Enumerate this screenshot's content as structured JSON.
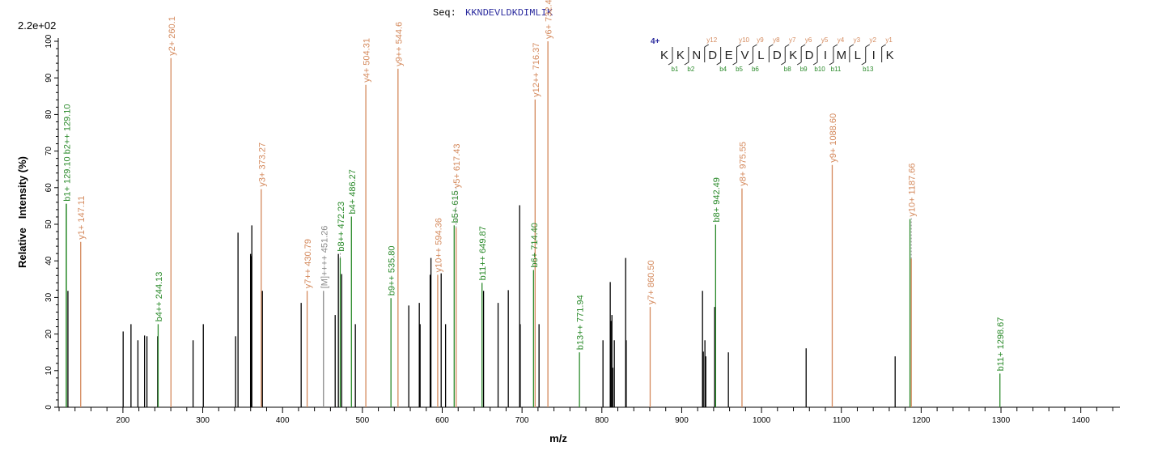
{
  "chart_data": {
    "type": "bar",
    "subtype": "mass-spectrum-sticks",
    "scale_label": "2.2e+02",
    "xlabel": "m/z",
    "ylabel": "Relative   Intensity (%)",
    "xlim": [
      119,
      1449
    ],
    "ylim": [
      0,
      100
    ],
    "x_ticks": [
      200,
      300,
      400,
      500,
      600,
      700,
      800,
      900,
      1000,
      1100,
      1200,
      1300,
      1400
    ],
    "y_ticks": [
      0,
      10,
      20,
      30,
      40,
      50,
      60,
      70,
      80,
      90,
      100
    ],
    "grid": false,
    "sequence": {
      "prefix": "Seq:",
      "peptide": "KKNDEVLDKDIMLIK",
      "charge": "4+",
      "residues": [
        "K",
        "K",
        "N",
        "D",
        "E",
        "V",
        "L",
        "D",
        "K",
        "D",
        "I",
        "M",
        "L",
        "I",
        "K"
      ],
      "y_ions": [
        12,
        10,
        9,
        8,
        7,
        6,
        5,
        4,
        3,
        2,
        1
      ],
      "b_ions": [
        1,
        2,
        4,
        5,
        6,
        8,
        9,
        10,
        11,
        13
      ]
    },
    "colors": {
      "b": "#2a8a2a",
      "y": "#d4895c",
      "other": "#8a8a8a",
      "unannotated": "#000000",
      "sequence": "#2b2b9e"
    },
    "peaks": [
      {
        "mz": 129.1,
        "intensity": 55.6,
        "ion": "b",
        "label": "b1+ 129.10"
      },
      {
        "mz": 129.1,
        "intensity": 55.6,
        "ion": "b",
        "label": "b2++ 129.10"
      },
      {
        "mz": 131.1,
        "intensity": 31.8,
        "ion": "unannotated"
      },
      {
        "mz": 147.11,
        "intensity": 45.2,
        "ion": "y",
        "label": "y1+ 147.11"
      },
      {
        "mz": 200.3,
        "intensity": 20.7,
        "ion": "unannotated"
      },
      {
        "mz": 210.1,
        "intensity": 22.7,
        "ion": "unannotated"
      },
      {
        "mz": 218.8,
        "intensity": 18.3,
        "ion": "unannotated"
      },
      {
        "mz": 227.1,
        "intensity": 19.6,
        "ion": "unannotated"
      },
      {
        "mz": 230.1,
        "intensity": 19.4,
        "ion": "unannotated"
      },
      {
        "mz": 243.5,
        "intensity": 19.4,
        "ion": "unannotated"
      },
      {
        "mz": 244.13,
        "intensity": 22.7,
        "ion": "b",
        "label": "b4++ 244.13"
      },
      {
        "mz": 260.18,
        "intensity": 95.4,
        "ion": "y",
        "label": "y2+ 260.1"
      },
      {
        "mz": 287.9,
        "intensity": 18.3,
        "ion": "unannotated"
      },
      {
        "mz": 300.7,
        "intensity": 22.7,
        "ion": "unannotated"
      },
      {
        "mz": 341.2,
        "intensity": 19.4,
        "ion": "unannotated"
      },
      {
        "mz": 344.2,
        "intensity": 47.7,
        "ion": "unannotated"
      },
      {
        "mz": 359.9,
        "intensity": 41.9,
        "ion": "unannotated"
      },
      {
        "mz": 360.9,
        "intensity": 41.3,
        "ion": "unannotated"
      },
      {
        "mz": 361.5,
        "intensity": 49.7,
        "ion": "unannotated"
      },
      {
        "mz": 373.27,
        "intensity": 59.6,
        "ion": "y",
        "label": "y3+ 373.27"
      },
      {
        "mz": 374.7,
        "intensity": 31.8,
        "ion": "unannotated"
      },
      {
        "mz": 423.3,
        "intensity": 28.5,
        "ion": "unannotated"
      },
      {
        "mz": 430.79,
        "intensity": 31.8,
        "ion": "y",
        "label": "y7++ 430.79"
      },
      {
        "mz": 451.26,
        "intensity": 31.8,
        "ion": "other",
        "label": "[M]++++ 451.26"
      },
      {
        "mz": 465.9,
        "intensity": 25.2,
        "ion": "unannotated"
      },
      {
        "mz": 469.9,
        "intensity": 41.9,
        "ion": "unannotated"
      },
      {
        "mz": 472.23,
        "intensity": 40.8,
        "ion": "b",
        "label": "b8++ 472.23"
      },
      {
        "mz": 474.0,
        "intensity": 36.4,
        "ion": "unannotated"
      },
      {
        "mz": 486.27,
        "intensity": 52.1,
        "ion": "b",
        "label": "b4+ 486.27"
      },
      {
        "mz": 491.2,
        "intensity": 22.7,
        "ion": "unannotated"
      },
      {
        "mz": 504.31,
        "intensity": 88.1,
        "ion": "y",
        "label": "y4+ 504.31"
      },
      {
        "mz": 535.8,
        "intensity": 29.8,
        "ion": "b",
        "label": "b9++ 535.80"
      },
      {
        "mz": 544.6,
        "intensity": 92.5,
        "ion": "y",
        "label": "y9++ 544.6"
      },
      {
        "mz": 558.1,
        "intensity": 27.8,
        "ion": "unannotated"
      },
      {
        "mz": 571.3,
        "intensity": 28.5,
        "ion": "unannotated"
      },
      {
        "mz": 572.3,
        "intensity": 22.7,
        "ion": "unannotated"
      },
      {
        "mz": 584.9,
        "intensity": 36.2,
        "ion": "unannotated"
      },
      {
        "mz": 585.9,
        "intensity": 40.8,
        "ion": "unannotated"
      },
      {
        "mz": 594.36,
        "intensity": 36.2,
        "ion": "y",
        "label": "y10++ 594.36"
      },
      {
        "mz": 598.7,
        "intensity": 36.6,
        "ion": "unannotated"
      },
      {
        "mz": 604.2,
        "intensity": 22.7,
        "ion": "unannotated"
      },
      {
        "mz": 615.0,
        "intensity": 49.7,
        "ion": "b",
        "label": "b5+ 615"
      },
      {
        "mz": 617.43,
        "intensity": 49.0,
        "ion": "y",
        "label": "y5+ 617.43"
      },
      {
        "mz": 649.87,
        "intensity": 34.0,
        "ion": "b",
        "label": "b11++ 649.87"
      },
      {
        "mz": 651.8,
        "intensity": 31.8,
        "ion": "unannotated"
      },
      {
        "mz": 670.0,
        "intensity": 28.5,
        "ion": "unannotated"
      },
      {
        "mz": 682.8,
        "intensity": 32.0,
        "ion": "unannotated"
      },
      {
        "mz": 697.0,
        "intensity": 55.2,
        "ion": "unannotated"
      },
      {
        "mz": 697.7,
        "intensity": 22.7,
        "ion": "unannotated"
      },
      {
        "mz": 714.4,
        "intensity": 37.5,
        "ion": "b",
        "label": "b6+ 714.40"
      },
      {
        "mz": 716.37,
        "intensity": 84.1,
        "ion": "y",
        "label": "y12++ 716.37"
      },
      {
        "mz": 721.3,
        "intensity": 22.7,
        "ion": "unannotated"
      },
      {
        "mz": 732.42,
        "intensity": 100.0,
        "ion": "y",
        "label": "y6+ 732.42"
      },
      {
        "mz": 771.94,
        "intensity": 15.0,
        "ion": "b",
        "label": "b13++ 771.94"
      },
      {
        "mz": 801.4,
        "intensity": 18.3,
        "ion": "unannotated"
      },
      {
        "mz": 810.5,
        "intensity": 34.2,
        "ion": "unannotated"
      },
      {
        "mz": 811.3,
        "intensity": 23.6,
        "ion": "unannotated"
      },
      {
        "mz": 812.6,
        "intensity": 25.2,
        "ion": "unannotated"
      },
      {
        "mz": 813.6,
        "intensity": 10.8,
        "ion": "unannotated"
      },
      {
        "mz": 815.6,
        "intensity": 18.3,
        "ion": "unannotated"
      },
      {
        "mz": 829.8,
        "intensity": 40.8,
        "ion": "unannotated"
      },
      {
        "mz": 830.5,
        "intensity": 18.3,
        "ion": "unannotated"
      },
      {
        "mz": 860.5,
        "intensity": 27.4,
        "ion": "y",
        "label": "y7+ 860.50"
      },
      {
        "mz": 926.1,
        "intensity": 31.8,
        "ion": "unannotated"
      },
      {
        "mz": 927.1,
        "intensity": 15.2,
        "ion": "unannotated"
      },
      {
        "mz": 929.1,
        "intensity": 18.3,
        "ion": "unannotated"
      },
      {
        "mz": 930.2,
        "intensity": 13.9,
        "ion": "unannotated"
      },
      {
        "mz": 941.3,
        "intensity": 27.4,
        "ion": "unannotated"
      },
      {
        "mz": 942.49,
        "intensity": 49.9,
        "ion": "b",
        "label": "b8+ 942.49"
      },
      {
        "mz": 958.5,
        "intensity": 15.0,
        "ion": "unannotated"
      },
      {
        "mz": 975.55,
        "intensity": 59.8,
        "ion": "y",
        "label": "y8+ 975.55"
      },
      {
        "mz": 1055.9,
        "intensity": 16.1,
        "ion": "unannotated"
      },
      {
        "mz": 1088.6,
        "intensity": 66.2,
        "ion": "y",
        "label": "y9+ 1088.60"
      },
      {
        "mz": 1167.4,
        "intensity": 13.9,
        "ion": "unannotated"
      },
      {
        "mz": 1186.0,
        "intensity": 51.4,
        "ion": "b-unlabeled"
      },
      {
        "mz": 1187.66,
        "intensity": 40.6,
        "ion": "y",
        "label": "y10+ 1187.66"
      },
      {
        "mz": 1298.67,
        "intensity": 9.2,
        "ion": "b",
        "label": "b11+ 1298.67"
      }
    ]
  }
}
